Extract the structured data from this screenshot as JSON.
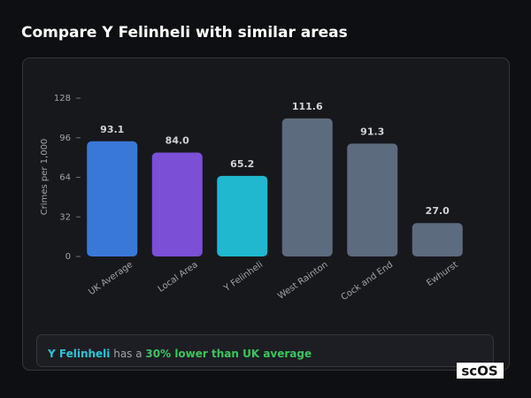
{
  "chart_data": {
    "type": "bar",
    "title": "Compare Y Felinheli with similar areas",
    "y_label": "Crimes per 1,000",
    "categories": [
      "UK Average",
      "Local Area",
      "Y Felinheli",
      "West Rainton",
      "Cock and End",
      "Ewhurst"
    ],
    "values": [
      93.1,
      84,
      65.2,
      111.6,
      91.3,
      27
    ],
    "value_labels": [
      "93.1",
      "84.0",
      "65.2",
      "111.6",
      "91.3",
      "27.0"
    ],
    "colors": [
      "#3a78d8",
      "#7b4fd6",
      "#1fb8cf",
      "#5d6b7e",
      "#5d6b7e",
      "#5d6b7e"
    ],
    "ylim": [
      0,
      128
    ],
    "yticks": [
      0,
      32,
      64,
      96,
      128
    ],
    "grid": false
  },
  "summary": {
    "area": "Y Felinheli",
    "middle": " has a ",
    "highlight": "30% lower than UK average"
  },
  "watermark": "scOS"
}
